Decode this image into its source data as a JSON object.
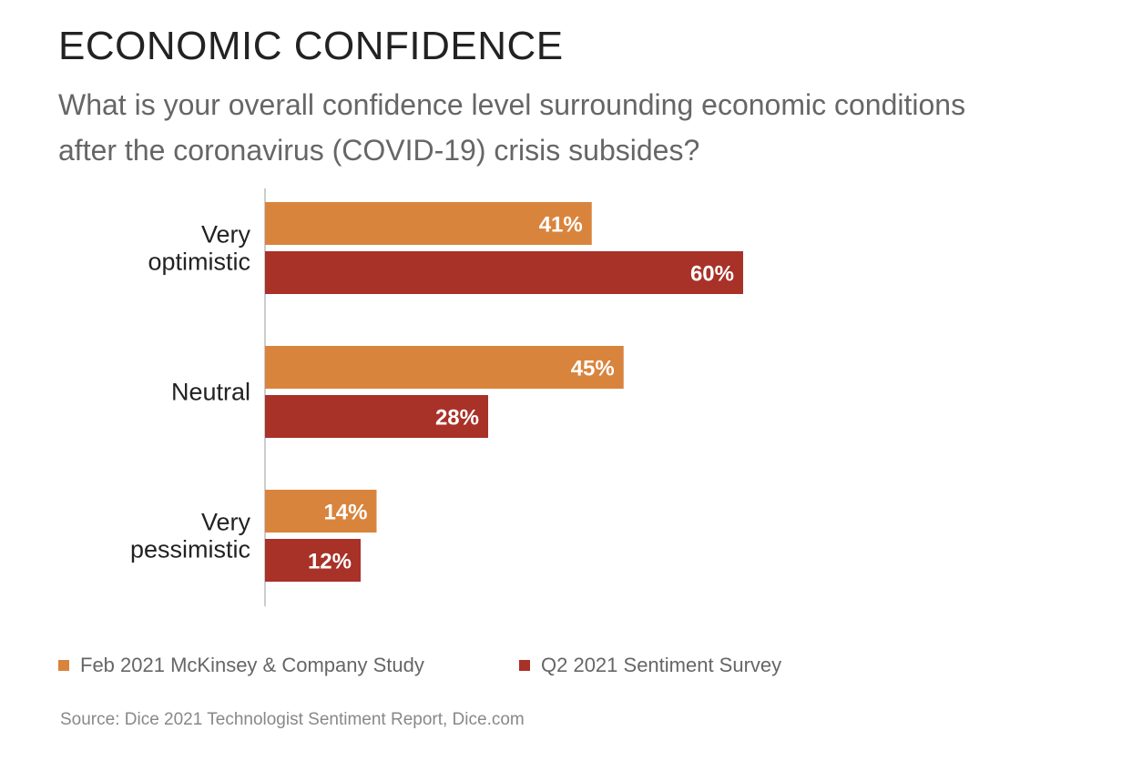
{
  "title": "ECONOMIC CONFIDENCE",
  "subtitle": "What is your overall confidence level surrounding economic conditions after the coronavirus (COVID-19) crisis subsides?",
  "source": "Source: Dice 2021 Technologist Sentiment Report, Dice.com",
  "colors": {
    "feb2021": "#D9843D",
    "q22021": "#A83128",
    "label_text": "#222222",
    "value_text": "#ffffff",
    "axis": "#cccccc"
  },
  "chart_data": {
    "type": "bar",
    "orientation": "horizontal",
    "categories": [
      [
        "Very",
        "optimistic"
      ],
      [
        "Neutral"
      ],
      [
        "Very",
        "pessimistic"
      ]
    ],
    "series": [
      {
        "name": "Feb 2021 McKinsey & Company Study",
        "values": [
          41,
          45,
          14
        ],
        "labels": [
          "41%",
          "45%",
          "14%"
        ]
      },
      {
        "name": "Q2 2021 Sentiment Survey",
        "values": [
          60,
          28,
          12
        ],
        "labels": [
          "60%",
          "28%",
          "12%"
        ]
      }
    ],
    "xlim": [
      0,
      100
    ],
    "grid": false,
    "legend_position": "bottom-left"
  }
}
